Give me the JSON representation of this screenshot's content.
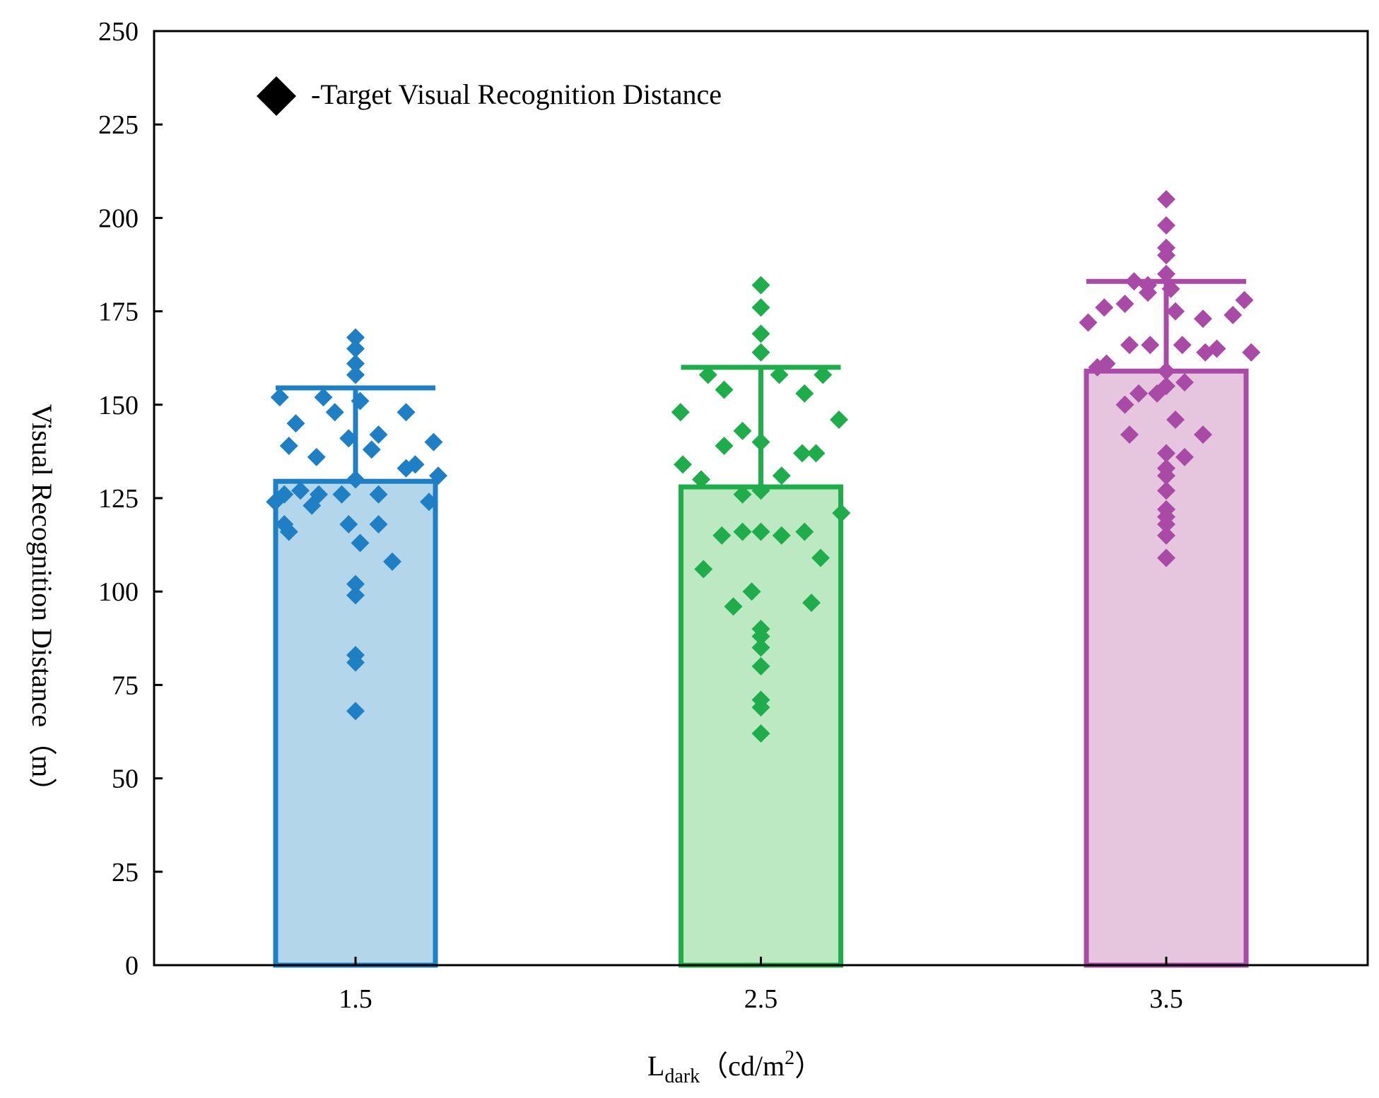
{
  "chart_data": {
    "type": "bar",
    "categories": [
      "1.5",
      "2.5",
      "3.5"
    ],
    "xlabel": {
      "main": "L",
      "sub": "dark",
      "unit_open": "（cd/m",
      "sup": "2",
      "unit_close": "）"
    },
    "ylabel": "Visual Recognition Distance（m）",
    "ylim": [
      0,
      250
    ],
    "yticks": [
      "0",
      "25",
      "50",
      "75",
      "100",
      "125",
      "150",
      "175",
      "200",
      "225",
      "250"
    ],
    "grid": false,
    "legend": {
      "position": "top-left",
      "label": "-Target Visual Recognition Distance",
      "marker": "diamond",
      "color": "#000000"
    },
    "series": [
      {
        "category": "1.5",
        "bar_value": 129.5,
        "error_upper": 154.5,
        "stroke": "#1f7fc4",
        "fill": "#b4d6ea",
        "points": [
          [
            -1.75,
            124
          ],
          [
            -1.55,
            126
          ],
          [
            -1.2,
            127
          ],
          [
            -0.8,
            126
          ],
          [
            -0.3,
            126
          ],
          [
            0.5,
            126
          ],
          [
            1.6,
            124
          ],
          [
            1.8,
            131
          ],
          [
            -1.55,
            118
          ],
          [
            -1.45,
            116
          ],
          [
            -0.95,
            123
          ],
          [
            -0.15,
            118
          ],
          [
            0.1,
            113
          ],
          [
            0.5,
            118
          ],
          [
            0.8,
            108
          ],
          [
            0,
            130
          ],
          [
            0,
            102
          ],
          [
            0,
            99
          ],
          [
            0,
            83
          ],
          [
            0,
            81
          ],
          [
            0,
            68
          ],
          [
            -1.65,
            152
          ],
          [
            -1.3,
            145
          ],
          [
            -1.45,
            139
          ],
          [
            -0.85,
            136
          ],
          [
            -0.7,
            152
          ],
          [
            -0.45,
            148
          ],
          [
            -0.15,
            141
          ],
          [
            0.35,
            138
          ],
          [
            0.5,
            142
          ],
          [
            1.1,
            133
          ],
          [
            1.3,
            134
          ],
          [
            1.1,
            148
          ],
          [
            1.7,
            140
          ],
          [
            0,
            168
          ],
          [
            0,
            165
          ],
          [
            0,
            161
          ],
          [
            0,
            158
          ],
          [
            0.1,
            151
          ]
        ]
      },
      {
        "category": "2.5",
        "bar_value": 128,
        "error_upper": 160,
        "stroke": "#1fad4c",
        "fill": "#bce8c2",
        "points": [
          [
            -1.15,
            158
          ],
          [
            -1.75,
            148
          ],
          [
            -0.8,
            154
          ],
          [
            -1.7,
            134
          ],
          [
            -1.3,
            130
          ],
          [
            -0.8,
            139
          ],
          [
            -0.4,
            143
          ],
          [
            0,
            140
          ],
          [
            0.45,
            131
          ],
          [
            0.9,
            137
          ],
          [
            1.2,
            137
          ],
          [
            0.95,
            153
          ],
          [
            1.35,
            158
          ],
          [
            1.7,
            146
          ],
          [
            0.4,
            158
          ],
          [
            0,
            164
          ],
          [
            0,
            169
          ],
          [
            0,
            176
          ],
          [
            0,
            182
          ],
          [
            -0.4,
            126
          ],
          [
            0,
            127
          ],
          [
            1.75,
            121
          ],
          [
            -1.25,
            106
          ],
          [
            -0.85,
            115
          ],
          [
            -0.4,
            116
          ],
          [
            0,
            116
          ],
          [
            0.45,
            115
          ],
          [
            0.95,
            116
          ],
          [
            1.3,
            109
          ],
          [
            -0.6,
            96
          ],
          [
            -0.2,
            100
          ],
          [
            1.1,
            97
          ],
          [
            0,
            90
          ],
          [
            0,
            88
          ],
          [
            0,
            85
          ],
          [
            0,
            80
          ],
          [
            0,
            71
          ],
          [
            0,
            69
          ],
          [
            0,
            62
          ]
        ]
      },
      {
        "category": "3.5",
        "bar_value": 159,
        "error_upper": 183,
        "stroke": "#a84aa6",
        "fill": "#e6c6de",
        "points": [
          [
            0,
            205
          ],
          [
            0,
            198
          ],
          [
            0,
            192
          ],
          [
            0,
            190
          ],
          [
            0,
            185
          ],
          [
            -0.7,
            183
          ],
          [
            -0.4,
            182
          ],
          [
            0.1,
            181
          ],
          [
            -1.7,
            172
          ],
          [
            -1.35,
            176
          ],
          [
            -0.9,
            177
          ],
          [
            -0.4,
            180
          ],
          [
            0.2,
            175
          ],
          [
            0.8,
            173
          ],
          [
            1.45,
            174
          ],
          [
            1.7,
            178
          ],
          [
            -0.8,
            166
          ],
          [
            -0.35,
            166
          ],
          [
            0.35,
            166
          ],
          [
            0.85,
            164
          ],
          [
            1.1,
            165
          ],
          [
            1.85,
            164
          ],
          [
            -1.5,
            160
          ],
          [
            -1.3,
            161
          ],
          [
            0,
            159
          ],
          [
            -0.9,
            150
          ],
          [
            -0.6,
            153
          ],
          [
            -0.2,
            153
          ],
          [
            0,
            155
          ],
          [
            0.4,
            156
          ],
          [
            0.2,
            146
          ],
          [
            0.8,
            142
          ],
          [
            -0.8,
            142
          ],
          [
            0.4,
            136
          ],
          [
            0,
            137
          ],
          [
            0,
            133
          ],
          [
            0,
            131
          ],
          [
            0,
            127
          ],
          [
            0,
            122
          ],
          [
            0,
            120
          ],
          [
            0,
            118
          ],
          [
            0,
            115
          ],
          [
            0,
            109
          ]
        ]
      }
    ]
  }
}
